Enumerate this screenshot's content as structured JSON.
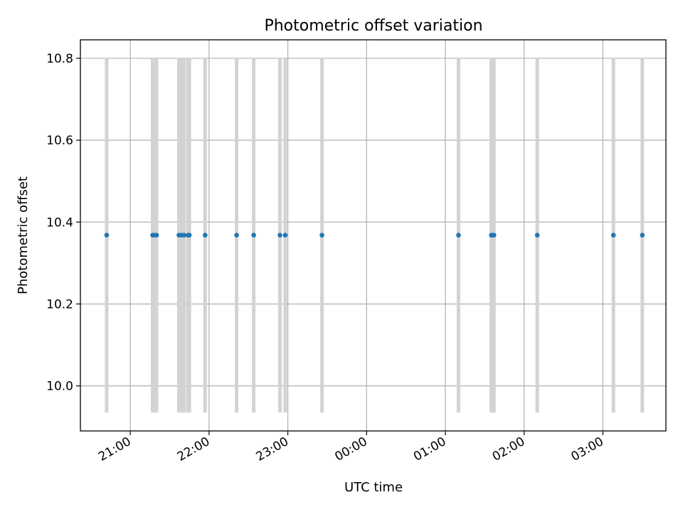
{
  "chart_data": {
    "type": "scatter",
    "title": "Photometric offset variation",
    "xlabel": "UTC time",
    "ylabel": "Photometric offset",
    "xlim": [
      "20:22",
      "03:48"
    ],
    "ylim": [
      9.89,
      10.845
    ],
    "x_ticks": [
      "21:00",
      "22:00",
      "23:00",
      "00:00",
      "01:00",
      "02:00",
      "03:00"
    ],
    "y_ticks": [
      10.0,
      10.2,
      10.4,
      10.6,
      10.8
    ],
    "y_tick_labels": [
      "10.0",
      "10.2",
      "10.4",
      "10.6",
      "10.8"
    ],
    "grid": true,
    "error_range": [
      9.935,
      10.8
    ],
    "error_bar_color": "#d3d3d3",
    "point_color": "#1f77b4",
    "points": [
      {
        "x": "20:42",
        "y": 10.368
      },
      {
        "x": "21:17",
        "y": 10.368
      },
      {
        "x": "21:18",
        "y": 10.368
      },
      {
        "x": "21:20",
        "y": 10.368
      },
      {
        "x": "21:37",
        "y": 10.368
      },
      {
        "x": "21:39",
        "y": 10.368
      },
      {
        "x": "21:41",
        "y": 10.368
      },
      {
        "x": "21:44",
        "y": 10.368
      },
      {
        "x": "21:45",
        "y": 10.368
      },
      {
        "x": "21:57",
        "y": 10.368
      },
      {
        "x": "22:21",
        "y": 10.368
      },
      {
        "x": "22:34",
        "y": 10.368
      },
      {
        "x": "22:54",
        "y": 10.368
      },
      {
        "x": "22:58",
        "y": 10.368
      },
      {
        "x": "23:26",
        "y": 10.368
      },
      {
        "x": "01:10",
        "y": 10.368
      },
      {
        "x": "01:35",
        "y": 10.368
      },
      {
        "x": "01:36",
        "y": 10.368
      },
      {
        "x": "01:37",
        "y": 10.368
      },
      {
        "x": "02:10",
        "y": 10.368
      },
      {
        "x": "03:08",
        "y": 10.368
      },
      {
        "x": "03:30",
        "y": 10.368
      }
    ]
  }
}
